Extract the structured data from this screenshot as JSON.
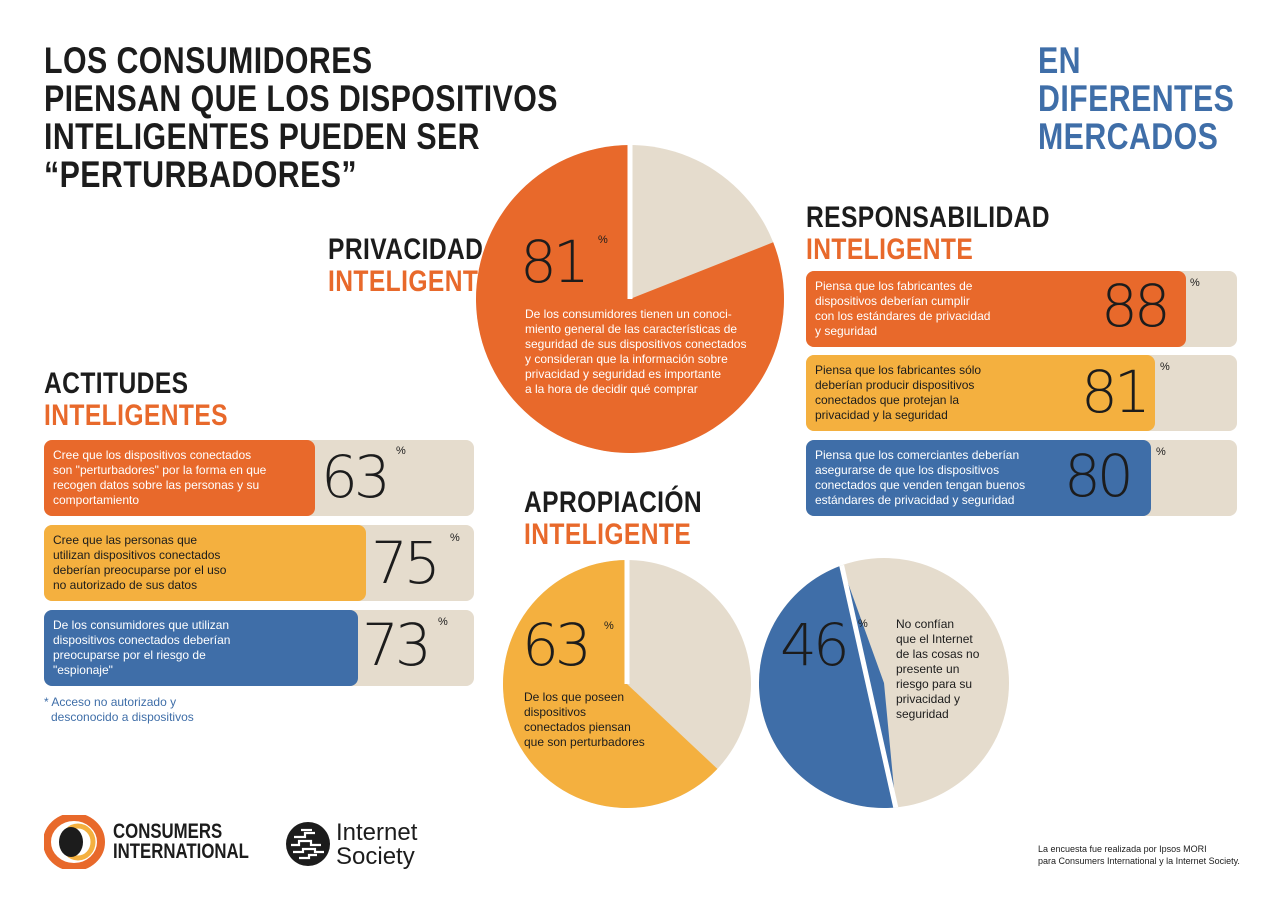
{
  "title": {
    "lines": [
      "LOS CONSUMIDORES",
      "PIENSAN QUE LOS DISPOSITIVOS",
      "INTELIGENTES PUEDEN SER",
      "“PERTURBADORES”"
    ]
  },
  "markets": {
    "lines": [
      "EN DIFERENTES",
      "MERCADOS"
    ]
  },
  "colors": {
    "orange": "#e8692b",
    "yellow": "#f4b03f",
    "blue": "#3f6ea8",
    "beige": "#e5dccd",
    "dark": "#1c1c1c"
  },
  "privacy": {
    "line1": "PRIVACIDAD",
    "line2": "INTELIGENTE",
    "value": "81",
    "percent": 81,
    "unit": "%",
    "text": [
      "De los consumidores tienen un conoci-",
      "miento general de las características de",
      "seguridad de sus dispositivos conectados",
      "y consideran que la información sobre",
      "privacidad y seguridad es importante",
      "a la hora de decidir qué comprar"
    ]
  },
  "responsibility": {
    "line1": "RESPONSABILIDAD",
    "line2": "INTELIGENTE",
    "items": [
      {
        "value": "88",
        "percent": 88,
        "unit": "%",
        "color": "#e8692b",
        "text": [
          "Piensa que los fabricantes de",
          "dispositivos deberían cumplir",
          "con los estándares de privacidad",
          "y seguridad"
        ]
      },
      {
        "value": "81",
        "percent": 81,
        "unit": "%",
        "color": "#f4b03f",
        "text": [
          "Piensa que los fabricantes sólo",
          "deberían producir dispositivos",
          "conectados que protejan la",
          "privacidad y la seguridad"
        ]
      },
      {
        "value": "80",
        "percent": 80,
        "unit": "%",
        "color": "#3f6ea8",
        "text": [
          "Piensa que los comerciantes deberían",
          "asegurarse de que los dispositivos",
          "conectados que venden tengan buenos",
          "estándares de privacidad y seguridad"
        ]
      }
    ]
  },
  "attitudes": {
    "line1": "ACTITUDES",
    "line2": "INTELIGENTES",
    "items": [
      {
        "value": "63",
        "percent": 63,
        "unit": "%",
        "color": "#e8692b",
        "text": [
          "Cree que los dispositivos conectados",
          "son \"perturbadores\" por la forma en que",
          "recogen datos sobre las personas y su",
          "comportamiento"
        ]
      },
      {
        "value": "75",
        "percent": 75,
        "unit": "%",
        "color": "#f4b03f",
        "text": [
          "Cree que las personas que",
          "utilizan dispositivos conectados",
          "deberían preocuparse por el uso",
          "no autorizado de sus datos"
        ]
      },
      {
        "value": "73",
        "percent": 73,
        "unit": "%",
        "color": "#3f6ea8",
        "text": [
          "De los consumidores que utilizan",
          "dispositivos conectados deberían",
          "preocuparse por el riesgo de",
          "\"espionaje\""
        ]
      }
    ],
    "note": [
      "* Acceso no autorizado y",
      "desconocido a dispositivos"
    ]
  },
  "ownership": {
    "line1": "APROPIACIÓN",
    "line2": "INTELIGENTE",
    "pie1": {
      "value": "63",
      "percent": 63,
      "unit": "%",
      "text": [
        "De los que poseen",
        "dispositivos",
        "conectados piensan",
        "que son perturbadores"
      ]
    },
    "pie2": {
      "value": "46",
      "percent": 46,
      "unit": "%",
      "text": [
        "No confían",
        "que el Internet",
        "de las cosas no",
        "presente un",
        "riesgo para su",
        "privacidad y",
        "seguridad"
      ]
    }
  },
  "footer": {
    "ci_lines": [
      "CONSUMERS",
      "INTERNATIONAL"
    ],
    "isoc_lines": [
      "Internet",
      "Society"
    ],
    "source": [
      "La encuesta fue realizada por Ipsos MORI",
      "para Consumers International y la Internet Society."
    ]
  }
}
